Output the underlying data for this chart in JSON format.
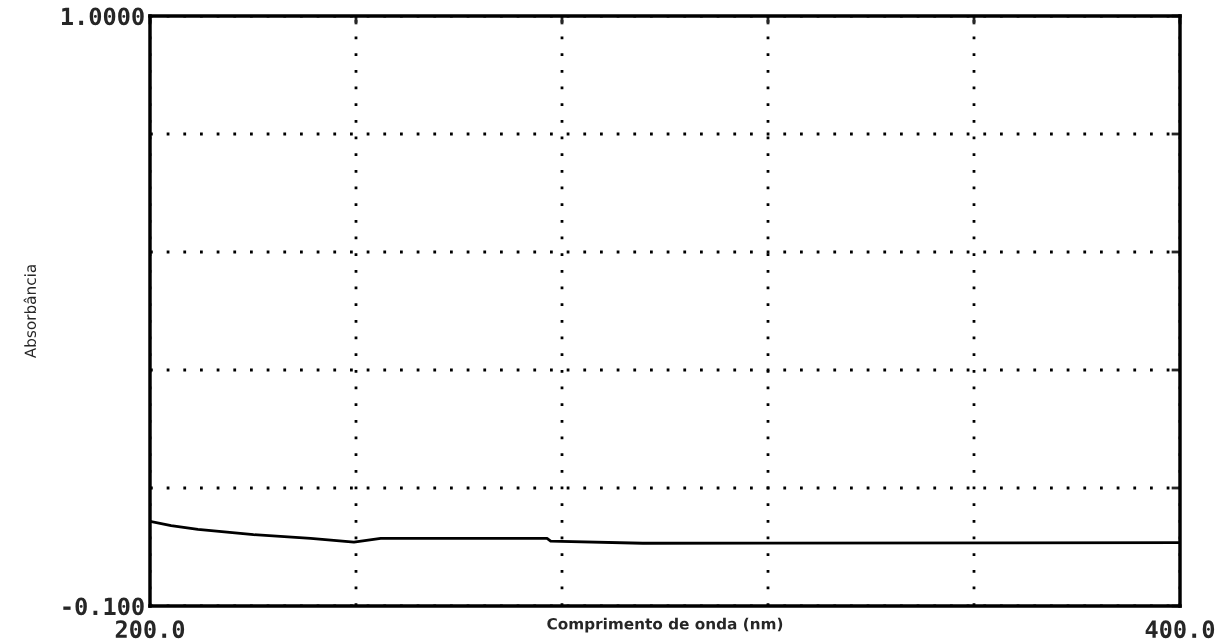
{
  "chart_data": {
    "type": "line",
    "xlabel": "Comprimento de onda (nm)",
    "ylabel": "Absorbância",
    "x": [
      200,
      204.1,
      209.3,
      220.1,
      231.2,
      239.6,
      244.8,
      277.1,
      277.8,
      295.7,
      400
    ],
    "series": [
      {
        "color": "#000000",
        "values": [
          0.058,
          0.05,
          0.043,
          0.033,
          0.026,
          0.019,
          0.026,
          0.026,
          0.021,
          0.017,
          0.018
        ]
      }
    ],
    "xlim": [
      200,
      400
    ],
    "ylim": [
      -0.1,
      1.0
    ],
    "xticks": [
      {
        "value": 200,
        "label": "200.0"
      },
      {
        "value": 240,
        "label": null
      },
      {
        "value": 280,
        "label": null
      },
      {
        "value": 320,
        "label": null
      },
      {
        "value": 360,
        "label": null
      },
      {
        "value": 400,
        "label": "400.0"
      }
    ],
    "yticks": [
      {
        "value": -0.1,
        "label": "-0.100"
      },
      {
        "value": 0.12,
        "label": null
      },
      {
        "value": 0.34,
        "label": null
      },
      {
        "value": 0.56,
        "label": null
      },
      {
        "value": 0.78,
        "label": null
      },
      {
        "value": 1.0,
        "label": "1.0000"
      }
    ],
    "grid": true,
    "line_style": "solid"
  }
}
